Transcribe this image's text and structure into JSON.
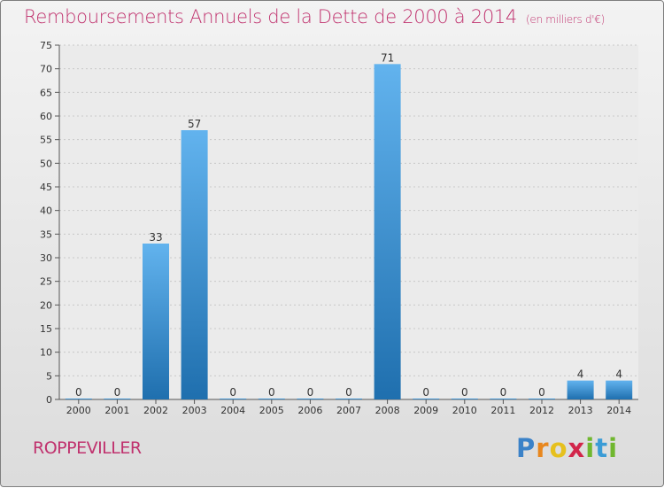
{
  "header": {
    "title": "Remboursements Annuels de la Dette de 2000 à 2014",
    "subtitle": "(en milliers d'€)"
  },
  "footer": {
    "commune": "ROPPEVILLER",
    "logo": "Proxiti"
  },
  "colors": {
    "title": "#c0326e",
    "bar_light": "#62b3ee",
    "bar_dark": "#1f6fae",
    "grid": "#c8c8c8"
  },
  "chart_data": {
    "type": "bar",
    "title": "Remboursements Annuels de la Dette de 2000 à 2014",
    "subtitle": "(en milliers d'€)",
    "categories": [
      "2000",
      "2001",
      "2002",
      "2003",
      "2004",
      "2005",
      "2006",
      "2007",
      "2008",
      "2009",
      "2010",
      "2011",
      "2012",
      "2013",
      "2014"
    ],
    "values": [
      0,
      0,
      33,
      57,
      0,
      0,
      0,
      0,
      71,
      0,
      0,
      0,
      0,
      4,
      4
    ],
    "data_labels": [
      "0",
      "0",
      "33",
      "57",
      "0",
      "0",
      "0",
      "0",
      "71",
      "0",
      "0",
      "0",
      "0",
      "4",
      "4"
    ],
    "ylim": [
      0,
      75
    ],
    "yticks": [
      0,
      5,
      10,
      15,
      20,
      25,
      30,
      35,
      40,
      45,
      50,
      55,
      60,
      65,
      70,
      75
    ],
    "grid": true,
    "xlabel": "",
    "ylabel": ""
  }
}
